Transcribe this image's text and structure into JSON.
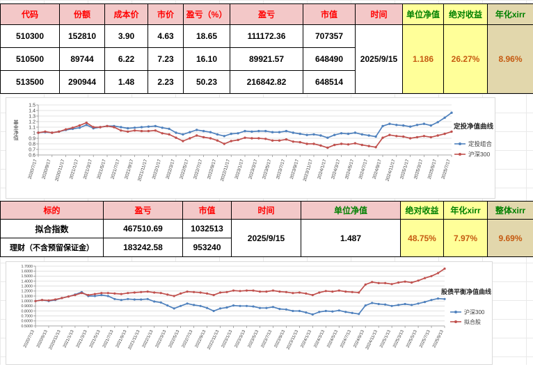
{
  "colors": {
    "pink": "#f3c8c8",
    "yellow": "#ffff99",
    "tan": "#e2d7ac",
    "red": "#ff0000",
    "green": "#008000",
    "orange": "#c55a11",
    "line_blue": "#4f81bd",
    "line_red": "#c0504d"
  },
  "table1": {
    "headers": [
      "代码",
      "份额",
      "成本价",
      "市价",
      "盈亏（%）",
      "盈亏",
      "市值",
      "时间",
      "单位净值",
      "绝对收益",
      "年化xirr"
    ],
    "rows": [
      [
        "510300",
        "152810",
        "3.90",
        "4.63",
        "18.65",
        "111172.36",
        "707357"
      ],
      [
        "510500",
        "89744",
        "6.22",
        "7.23",
        "16.10",
        "89921.57",
        "648490"
      ],
      [
        "513500",
        "290944",
        "1.48",
        "2.23",
        "50.23",
        "216842.82",
        "648514"
      ]
    ],
    "time": "2025/9/15",
    "unit_nav": "1.186",
    "abs_return": "26.27%",
    "xirr": "8.96%"
  },
  "table2": {
    "headers": [
      "标的",
      "盈亏",
      "市值",
      "时间",
      "单位净值",
      "绝对收益",
      "年化xirr",
      "整体xirr"
    ],
    "rows": [
      [
        "拟合指数",
        "467510.69",
        "1032513"
      ],
      [
        "理财（不含预留保证金）",
        "183242.58",
        "953240"
      ]
    ],
    "time": "2025/9/15",
    "unit_nav": "1.487",
    "abs_return": "48.75%",
    "xirr": "7.97%",
    "overall_xirr": "9.69%"
  },
  "chart_data": [
    {
      "type": "line",
      "title": "定投净值曲线",
      "ylabel": "基金净值",
      "ylim": [
        0.6,
        1.5
      ],
      "ytick_step": 0.1,
      "ytick_decimals": 1,
      "ytick_trim": true,
      "legend_position": "right",
      "grid": true,
      "x_labels": [
        "2020/7/17",
        "2020/9/17",
        "2020/11/17",
        "2021/1/17",
        "2021/3/17",
        "2021/5/17",
        "2021/7/17",
        "2021/9/17",
        "2021/11/17",
        "2022/1/17",
        "2022/3/17",
        "2022/5/17",
        "2022/7/17",
        "2022/9/17",
        "2022/11/17",
        "2023/1/17",
        "2023/3/17",
        "2023/5/17",
        "2023/7/17",
        "2023/9/17",
        "2023/11/17",
        "2024/1/17",
        "2024/3/17",
        "2024/5/17",
        "2024/7/17",
        "2024/9/17",
        "2024/11/17",
        "2025/1/17",
        "2025/3/17",
        "2025/5/17",
        "2025/7/17"
      ],
      "series": [
        {
          "name": "定投组合",
          "color": "#4f81bd",
          "values": [
            1.0,
            1.01,
            1.0,
            1.02,
            1.05,
            1.07,
            1.09,
            1.14,
            1.08,
            1.1,
            1.12,
            1.12,
            1.1,
            1.08,
            1.09,
            1.1,
            1.11,
            1.12,
            1.09,
            1.07,
            1.0,
            0.97,
            1.01,
            1.05,
            1.03,
            1.01,
            0.97,
            0.94,
            0.98,
            0.99,
            1.03,
            1.02,
            1.03,
            1.03,
            1.01,
            1.01,
            1.03,
            1.0,
            0.98,
            0.96,
            0.97,
            0.95,
            0.91,
            0.96,
            0.99,
            0.98,
            1.0,
            0.97,
            0.95,
            0.93,
            1.12,
            1.16,
            1.14,
            1.13,
            1.11,
            1.14,
            1.16,
            1.13,
            1.19,
            1.27,
            1.36
          ]
        },
        {
          "name": "沪深300",
          "color": "#c0504d",
          "values": [
            1.0,
            1.02,
            1.0,
            1.02,
            1.06,
            1.09,
            1.13,
            1.18,
            1.1,
            1.1,
            1.12,
            1.1,
            1.04,
            1.02,
            1.04,
            1.03,
            1.03,
            1.04,
            0.99,
            0.97,
            0.91,
            0.85,
            0.9,
            0.95,
            0.92,
            0.9,
            0.86,
            0.8,
            0.85,
            0.87,
            0.91,
            0.9,
            0.9,
            0.89,
            0.86,
            0.86,
            0.88,
            0.84,
            0.83,
            0.8,
            0.8,
            0.77,
            0.73,
            0.78,
            0.8,
            0.79,
            0.81,
            0.78,
            0.76,
            0.74,
            0.91,
            0.96,
            0.94,
            0.93,
            0.9,
            0.92,
            0.94,
            0.92,
            0.95,
            0.98,
            1.02
          ]
        }
      ]
    },
    {
      "type": "line",
      "title": "股债平衡净值曲线",
      "ylabel": "",
      "ylim": [
        0.5,
        1.7
      ],
      "ytick_step": 0.1,
      "ytick_decimals": 4,
      "ytick_trim": false,
      "legend_position": "right",
      "grid": true,
      "x_labels": [
        "2020/7/13",
        "2020/9/13",
        "2020/11/13",
        "2021/1/13",
        "2021/3/13",
        "2021/5/13",
        "2021/7/13",
        "2021/9/13",
        "2021/11/13",
        "2022/1/13",
        "2022/3/13",
        "2022/5/13",
        "2022/7/13",
        "2022/9/13",
        "2022/11/13",
        "2023/1/13",
        "2023/3/13",
        "2023/5/13",
        "2023/7/13",
        "2023/9/13",
        "2023/11/13",
        "2024/1/13",
        "2024/3/13",
        "2024/5/13",
        "2024/7/13",
        "2024/9/13",
        "2024/11/13",
        "2025/1/13",
        "2025/3/13",
        "2025/5/13",
        "2025/7/13",
        "2025/9/13"
      ],
      "series": [
        {
          "name": "沪深300",
          "color": "#4f81bd",
          "values": [
            1.0,
            1.02,
            1.0,
            1.02,
            1.06,
            1.09,
            1.13,
            1.18,
            1.1,
            1.1,
            1.12,
            1.1,
            1.04,
            1.02,
            1.04,
            1.03,
            1.03,
            1.04,
            0.99,
            0.97,
            0.91,
            0.85,
            0.9,
            0.95,
            0.92,
            0.9,
            0.86,
            0.8,
            0.85,
            0.87,
            0.91,
            0.9,
            0.9,
            0.89,
            0.86,
            0.86,
            0.88,
            0.84,
            0.83,
            0.8,
            0.8,
            0.77,
            0.73,
            0.78,
            0.8,
            0.79,
            0.81,
            0.78,
            0.76,
            0.74,
            0.91,
            0.96,
            0.94,
            0.93,
            0.9,
            0.92,
            0.94,
            0.92,
            0.95,
            0.98,
            1.02,
            1.05,
            1.04
          ]
        },
        {
          "name": "拟合股",
          "color": "#c0504d",
          "values": [
            1.0,
            1.02,
            1.01,
            1.03,
            1.06,
            1.09,
            1.12,
            1.16,
            1.12,
            1.14,
            1.16,
            1.16,
            1.15,
            1.14,
            1.16,
            1.17,
            1.18,
            1.19,
            1.17,
            1.16,
            1.13,
            1.1,
            1.15,
            1.19,
            1.18,
            1.17,
            1.15,
            1.12,
            1.17,
            1.18,
            1.21,
            1.2,
            1.21,
            1.21,
            1.19,
            1.19,
            1.21,
            1.19,
            1.18,
            1.16,
            1.17,
            1.15,
            1.12,
            1.17,
            1.2,
            1.19,
            1.21,
            1.19,
            1.18,
            1.17,
            1.33,
            1.38,
            1.36,
            1.36,
            1.34,
            1.37,
            1.39,
            1.37,
            1.41,
            1.46,
            1.5,
            1.56,
            1.65
          ]
        }
      ]
    }
  ]
}
